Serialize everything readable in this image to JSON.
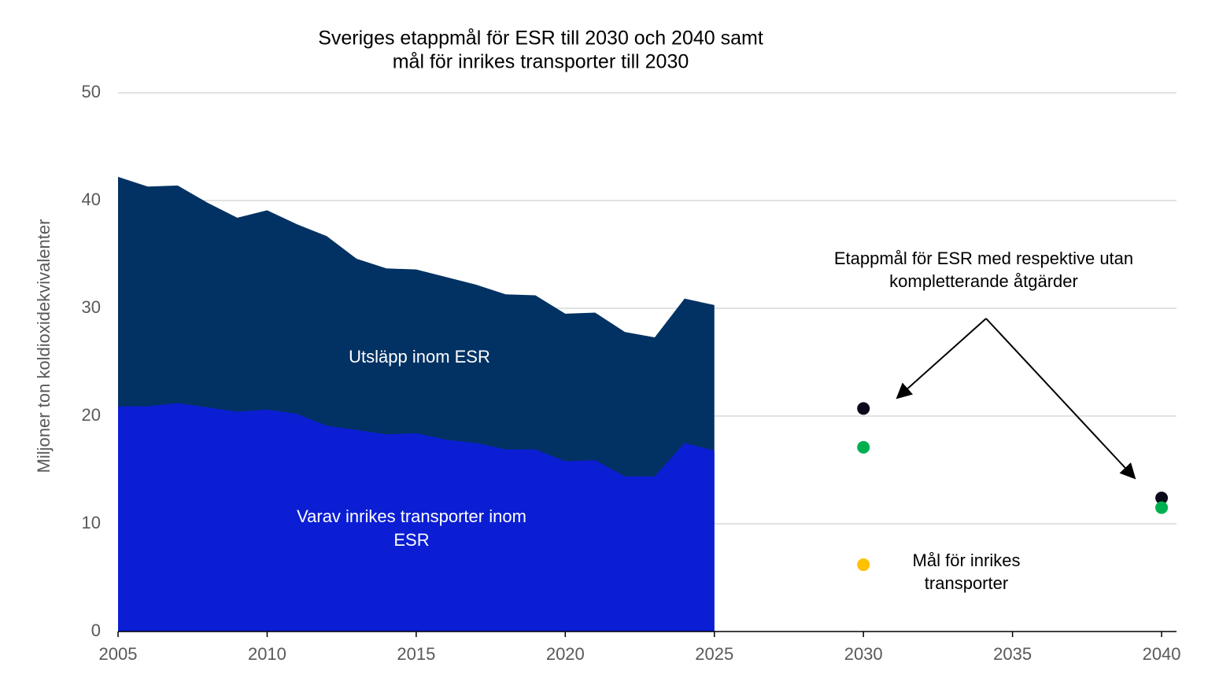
{
  "chart_data": {
    "type": "area",
    "title": [
      "Sveriges etappmål för ESR till 2030 och 2040 samt",
      "mål för inrikes transporter till 2030"
    ],
    "y_label": "Miljoner ton koldioxidekvivalenter",
    "x": [
      2005,
      2006,
      2007,
      2008,
      2009,
      2010,
      2011,
      2012,
      2013,
      2014,
      2015,
      2016,
      2017,
      2018,
      2019,
      2020,
      2021,
      2022,
      2023,
      2024,
      2025
    ],
    "series": [
      {
        "name": "Utsläpp inom ESR",
        "color": "#023263",
        "values": [
          42.2,
          41.3,
          41.4,
          39.8,
          38.4,
          39.1,
          37.8,
          36.7,
          34.6,
          33.7,
          33.6,
          32.9,
          32.2,
          31.3,
          31.2,
          29.5,
          29.6,
          27.8,
          27.3,
          30.9,
          30.3
        ]
      },
      {
        "name": [
          "Varav inrikes transporter inom",
          "ESR"
        ],
        "color": "#0b1ed4",
        "values": [
          20.9,
          20.9,
          21.2,
          20.8,
          20.4,
          20.6,
          20.2,
          19.1,
          18.7,
          18.3,
          18.4,
          17.8,
          17.5,
          16.9,
          16.9,
          15.8,
          15.9,
          14.4,
          14.4,
          17.5,
          16.8
        ]
      }
    ],
    "points": [
      {
        "x": 2030,
        "value": 20.7,
        "color": "#0a0a1a"
      },
      {
        "x": 2030,
        "value": 17.1,
        "color": "#00b050"
      },
      {
        "x": 2030,
        "value": 6.2,
        "color": "#ffc000"
      },
      {
        "x": 2040,
        "value": 12.4,
        "color": "#0a0a1a"
      },
      {
        "x": 2040,
        "value": 11.5,
        "color": "#00b050"
      }
    ],
    "annotations": [
      [
        "Etappmål för ESR med respektive utan",
        "kompletterande åtgärder"
      ],
      [
        "Mål för inrikes",
        "transporter"
      ]
    ],
    "xlim": [
      2005,
      2040.5
    ],
    "xticks": [
      2005,
      2010,
      2015,
      2020,
      2025,
      2030,
      2035,
      2040
    ],
    "ylim": [
      0,
      50
    ],
    "yticks": [
      0,
      10,
      20,
      30,
      40,
      50
    ],
    "grid": true
  }
}
